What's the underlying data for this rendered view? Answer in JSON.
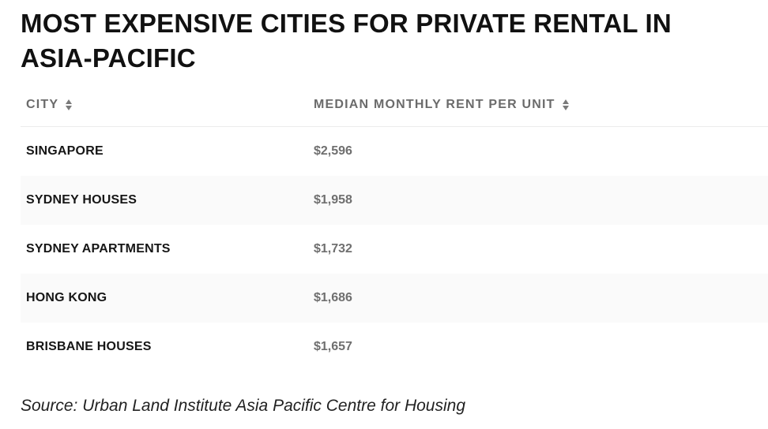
{
  "title": "MOST EXPENSIVE CITIES FOR PRIVATE RENTAL IN ASIA-PACIFIC",
  "table": {
    "headers": {
      "city": "CITY",
      "rent": "MEDIAN MONTHLY RENT PER UNIT"
    },
    "sort_icon": "sort-icon",
    "rows": [
      {
        "city": "SINGAPORE",
        "rent": "$2,596"
      },
      {
        "city": "SYDNEY HOUSES",
        "rent": "$1,958"
      },
      {
        "city": "SYDNEY APARTMENTS",
        "rent": "$1,732"
      },
      {
        "city": "HONG KONG",
        "rent": "$1,686"
      },
      {
        "city": "BRISBANE HOUSES",
        "rent": "$1,657"
      }
    ]
  },
  "source": "Source: Urban Land Institute Asia Pacific Centre for Housing",
  "colors": {
    "title": "#111111",
    "header_text": "#6b6b6b",
    "city_text": "#161616",
    "rent_text": "#6f6f6f",
    "alt_row_bg": "#fafafa"
  }
}
